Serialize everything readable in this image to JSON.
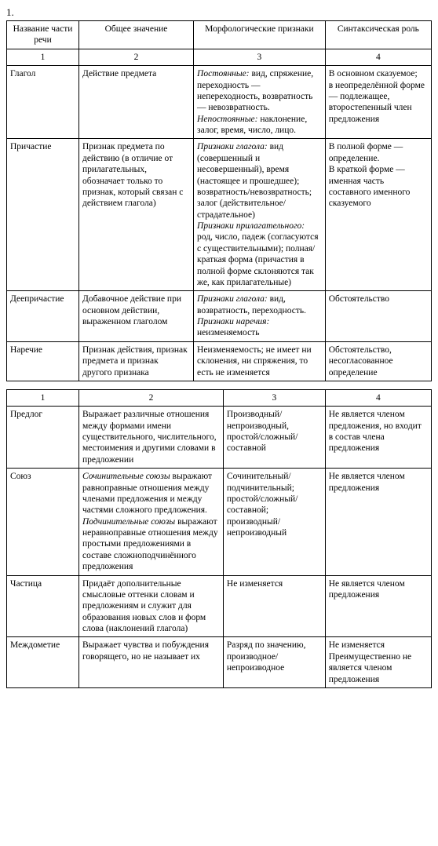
{
  "task_number": "1.",
  "table1": {
    "headers": [
      "Название части речи",
      "Общее значение",
      "Морфологические признаки",
      "Синтаксическая роль"
    ],
    "nums": [
      "1",
      "2",
      "3",
      "4"
    ],
    "rows": [
      {
        "c1": "Глагол",
        "c2": "Действие предмета",
        "c3a": "Постоянные:",
        "c3b": " вид, спряжение, переходность — непереходность, возвратность — невозвратность.",
        "c3c": "Непостоянные:",
        "c3d": " наклонение, залог, время, число, лицо.",
        "c4": "В основном сказуемое;\nв неопределённой форме — подлежащее, второстепенный член предложения"
      },
      {
        "c1": "Причастие",
        "c2": "Признак предмета по действию (в отличие от прилагательных, обозначает только то признак, который связан с действием глагола)",
        "c3a": "Признаки глагола:",
        "c3b": " вид (совершенный и несовершенный), время (настоящее и прошедшее); возвратность/невозвратность; залог (действительное/страдательное)",
        "c3c": "Признаки прилагательного:",
        "c3d": " род, число, падеж (согласуются с существительными); полная/краткая форма (причастия в полной форме склоняются так же, как прилагательные)",
        "c4": "В полной форме — определение.\nВ краткой форме — именная часть составного именного сказуемого"
      },
      {
        "c1": "Деепричастие",
        "c2": "Добавочное действие при основном действии, выраженном глаголом",
        "c3a": "Признаки глагола:",
        "c3b": " вид, возвратность, переходность.",
        "c3c": "Признаки наречия:",
        "c3d": " неизменяемость",
        "c4": "Обстоятельство"
      },
      {
        "c1": "Наречие",
        "c2": "Признак действия, признак предмета и признак другого признака",
        "c3": "Неизменяемость; не имеет ни склонения, ни спряжения, то есть не изменяется",
        "c4": "Обстоятельство, несогласованное определение"
      }
    ]
  },
  "table2": {
    "nums": [
      "1",
      "2",
      "3",
      "4"
    ],
    "rows": [
      {
        "c1": "Предлог",
        "c2": "Выражает различные отношения между формами имени существительного, числительного, местоимения и другими словами в предложении",
        "c3": "Производный/непроизводный, простой/сложный/составной",
        "c4": "Не является членом предложения, но входит в состав члена предложения"
      },
      {
        "c1": "Союз",
        "c2a": "Сочинительные союзы",
        "c2b": " выражают равноправные отношения между членами предложения и между частями сложного предложения.",
        "c2c": "Подчинительные союзы",
        "c2d": " выражают неравноправные отношения между простыми предложениями в составе сложноподчинённого предложения",
        "c3": "Сочинительный/подчинительный; простой/сложный/составной; производный/непроизводный",
        "c4": "Не является членом предложения"
      },
      {
        "c1": "Частица",
        "c2": "Придаёт дополнительные смысловые оттенки словам и предложениям и служит для образования новых слов и форм слова (наклонений глагола)",
        "c3": "Не изменяется",
        "c4": "Не является членом предложения"
      },
      {
        "c1": "Междометие",
        "c2": "Выражает чувства и побуждения говорящего, но не называет их",
        "c3": "Разряд по значению, производное/непроизводное",
        "c4": "Не изменяется\nПреимущественно не является членом предложения"
      }
    ]
  }
}
